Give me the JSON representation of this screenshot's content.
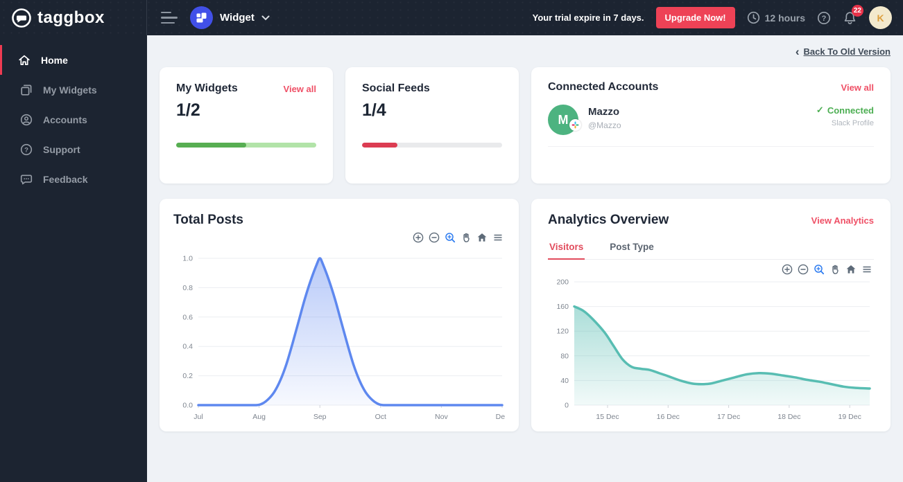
{
  "header": {
    "logo_text": "taggbox",
    "widget_label": "Widget",
    "trial_text": "Your trial expire in 7 days.",
    "upgrade_button": "Upgrade Now!",
    "hours_left": "12 hours",
    "notification_count": "22",
    "avatar_initial": "K"
  },
  "sidebar": {
    "items": [
      {
        "label": "Home",
        "active": true
      },
      {
        "label": "My Widgets",
        "active": false
      },
      {
        "label": "Accounts",
        "active": false
      },
      {
        "label": "Support",
        "active": false
      },
      {
        "label": "Feedback",
        "active": false
      }
    ]
  },
  "main": {
    "back_link": "Back To Old Version",
    "cards": {
      "my_widgets": {
        "title": "My Widgets",
        "link": "View all",
        "count": "1/2",
        "progress_pct": 50,
        "bar_color": "#57ae52",
        "track_color": "#b2e3a8"
      },
      "social_feeds": {
        "title": "Social Feeds",
        "count": "1/4",
        "progress_pct": 25,
        "bar_color": "#dc3c52",
        "track_color": "#e9eaec"
      },
      "connected_accounts": {
        "title": "Connected Accounts",
        "link": "View all",
        "account": {
          "name": "Mazzo",
          "handle": "@Mazzo",
          "avatar_initial": "M",
          "status": "Connected",
          "check": "✓",
          "type": "Slack Profile"
        }
      },
      "total_posts": {
        "title": "Total Posts"
      },
      "analytics": {
        "title": "Analytics Overview",
        "link": "View Analytics",
        "tabs": [
          {
            "label": "Visitors"
          },
          {
            "label": "Post Type"
          }
        ]
      }
    }
  },
  "colors": {
    "dark": "#1c2431",
    "accent_red": "#ee4256",
    "link_red": "#ef5066",
    "green": "#4cae52",
    "blue_line": "#5e88ef",
    "teal_line": "#58bdb2"
  },
  "chart_data": [
    {
      "id": "total_posts",
      "type": "area",
      "title": "Total Posts",
      "xlabel": "",
      "ylabel": "",
      "x_range": [
        0,
        5
      ],
      "y_range": [
        0,
        1
      ],
      "x_ticks": [
        {
          "v": 0,
          "label": "Jul"
        },
        {
          "v": 1,
          "label": "Aug"
        },
        {
          "v": 2,
          "label": "Sep"
        },
        {
          "v": 3,
          "label": "Oct"
        },
        {
          "v": 4,
          "label": "Nov"
        },
        {
          "v": 5,
          "label": "Dec"
        }
      ],
      "y_ticks": [
        {
          "v": 0,
          "label": "0.0"
        },
        {
          "v": 0.2,
          "label": "0.2"
        },
        {
          "v": 0.4,
          "label": "0.4"
        },
        {
          "v": 0.6,
          "label": "0.6"
        },
        {
          "v": 0.8,
          "label": "0.8"
        },
        {
          "v": 1,
          "label": "1.0"
        }
      ],
      "line_color": "#5e88ef",
      "line_width": 3.5,
      "fill_from": "rgba(99,138,240,0.45)",
      "fill_to": "rgba(99,138,240,0.05)",
      "grid": true,
      "legend": "none",
      "points": [
        [
          0,
          0
        ],
        [
          0.35,
          0
        ],
        [
          0.7,
          0
        ],
        [
          0.95,
          0
        ],
        [
          1.05,
          0.01
        ],
        [
          1.15,
          0.04
        ],
        [
          1.25,
          0.09
        ],
        [
          1.35,
          0.17
        ],
        [
          1.45,
          0.28
        ],
        [
          1.55,
          0.42
        ],
        [
          1.65,
          0.57
        ],
        [
          1.75,
          0.72
        ],
        [
          1.85,
          0.85
        ],
        [
          1.95,
          0.96
        ],
        [
          2,
          1
        ],
        [
          2.05,
          0.96
        ],
        [
          2.15,
          0.85
        ],
        [
          2.25,
          0.72
        ],
        [
          2.35,
          0.57
        ],
        [
          2.45,
          0.42
        ],
        [
          2.55,
          0.28
        ],
        [
          2.65,
          0.17
        ],
        [
          2.75,
          0.09
        ],
        [
          2.85,
          0.04
        ],
        [
          2.95,
          0.01
        ],
        [
          3.05,
          0
        ],
        [
          3.3,
          0
        ],
        [
          3.7,
          0
        ],
        [
          4.1,
          0
        ],
        [
          4.5,
          0
        ],
        [
          5,
          0
        ]
      ],
      "pad": {
        "l": 36,
        "r": 4,
        "t": 6,
        "b": 28
      }
    },
    {
      "id": "visitors",
      "type": "area",
      "title": "Analytics Overview — Visitors",
      "xlabel": "",
      "ylabel": "",
      "x_range": [
        14.45,
        19.33
      ],
      "y_range": [
        0,
        200
      ],
      "x_ticks": [
        {
          "v": 15,
          "label": "15 Dec"
        },
        {
          "v": 16,
          "label": "16 Dec"
        },
        {
          "v": 17,
          "label": "17 Dec"
        },
        {
          "v": 18,
          "label": "18 Dec"
        },
        {
          "v": 19,
          "label": "19 Dec"
        }
      ],
      "y_ticks": [
        {
          "v": 0,
          "label": "0"
        },
        {
          "v": 40,
          "label": "40"
        },
        {
          "v": 80,
          "label": "80"
        },
        {
          "v": 120,
          "label": "120"
        },
        {
          "v": 160,
          "label": "160"
        },
        {
          "v": 200,
          "label": "200"
        }
      ],
      "line_color": "#58bdb2",
      "line_width": 3.5,
      "fill_from": "rgba(88,189,178,0.50)",
      "fill_to": "rgba(88,189,178,0.08)",
      "grid": true,
      "legend": "none",
      "points": [
        [
          14.45,
          160
        ],
        [
          14.6,
          153
        ],
        [
          14.75,
          140
        ],
        [
          14.95,
          118
        ],
        [
          15.1,
          96
        ],
        [
          15.25,
          74
        ],
        [
          15.4,
          62
        ],
        [
          15.55,
          59
        ],
        [
          15.7,
          57
        ],
        [
          15.85,
          52
        ],
        [
          16,
          47
        ],
        [
          16.2,
          40
        ],
        [
          16.4,
          35
        ],
        [
          16.55,
          34
        ],
        [
          16.7,
          35
        ],
        [
          16.9,
          40
        ],
        [
          17.1,
          45
        ],
        [
          17.3,
          50
        ],
        [
          17.5,
          52
        ],
        [
          17.7,
          51
        ],
        [
          17.9,
          48
        ],
        [
          18.1,
          45
        ],
        [
          18.3,
          41
        ],
        [
          18.5,
          38
        ],
        [
          18.7,
          34
        ],
        [
          18.9,
          30
        ],
        [
          19.1,
          28
        ],
        [
          19.33,
          27
        ]
      ],
      "pad": {
        "l": 38,
        "r": 4,
        "t": 6,
        "b": 28
      }
    }
  ]
}
